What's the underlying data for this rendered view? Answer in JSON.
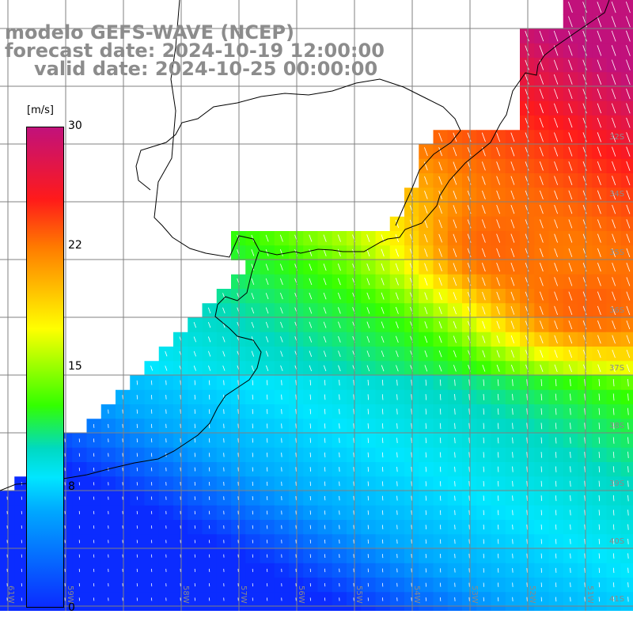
{
  "title": {
    "line1": "modelo GEFS-WAVE (NCEP)",
    "line2": "forecast date: 2024-10-19 12:00:00",
    "line3": "valid date: 2024-10-25 00:00:00"
  },
  "colorbar": {
    "unit": "[m/s]",
    "ticks": [
      "30",
      "22",
      "15",
      "8",
      "0"
    ],
    "stops": [
      "#c1117b",
      "#ff1a1a",
      "#ff7b00",
      "#ffff00",
      "#33ff00",
      "#00d9c2",
      "#00e6ff",
      "#00a8ff",
      "#0b2cff"
    ]
  },
  "axes": {
    "lon_labels": [
      "61W",
      "59W",
      "58W",
      "57W",
      "56W",
      "55W",
      "54W",
      "53W",
      "52W",
      "51W"
    ],
    "lat_labels": [
      "32S",
      "34S",
      "35S",
      "36S",
      "37S",
      "38S",
      "39S",
      "40S",
      "41S"
    ]
  },
  "colors": {
    "coast": "#000000",
    "grid": "#808080",
    "arrows": "#ffffff",
    "title": "#8c8c8c"
  },
  "map": {
    "type": "wind-speed-field",
    "units": "m/s",
    "range": [
      0,
      30
    ],
    "region": "Rio de la Plata / South Atlantic"
  }
}
